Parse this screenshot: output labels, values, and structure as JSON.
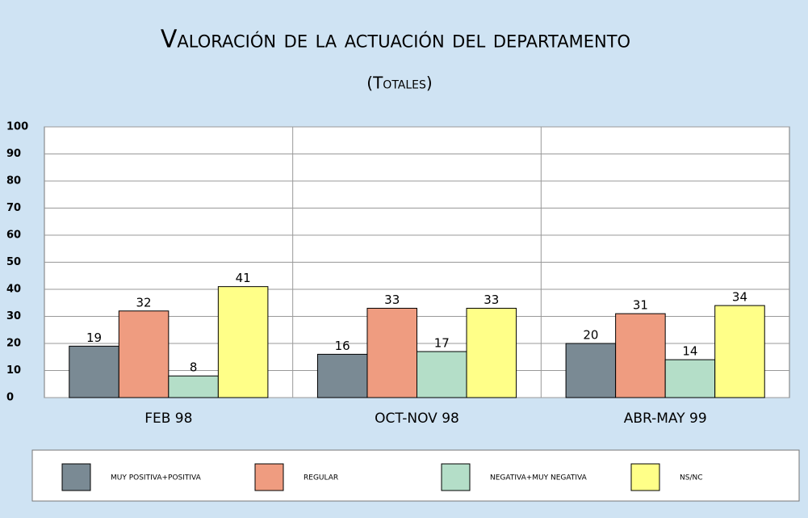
{
  "chart_data": {
    "type": "bar",
    "title": "Valoración de la actuación del departamento",
    "subtitle": "(Totales)",
    "categories": [
      "FEB 98",
      "OCT-NOV 98",
      "ABR-MAY 99"
    ],
    "series": [
      {
        "name": "MUY POSITIVA+POSITIVA",
        "color": "#7a8a94",
        "values": [
          19,
          16,
          20
        ]
      },
      {
        "name": "REGULAR",
        "color": "#ef9c80",
        "values": [
          32,
          33,
          31
        ]
      },
      {
        "name": "NEGATIVA+MUY NEGATIVA",
        "color": "#b4dec8",
        "values": [
          8,
          17,
          14
        ]
      },
      {
        "name": "NS/NC",
        "color": "#ffff88",
        "values": [
          41,
          33,
          34
        ]
      }
    ],
    "ylim": [
      0,
      100
    ],
    "yticks": [
      0,
      10,
      20,
      30,
      40,
      50,
      60,
      70,
      80,
      90,
      100
    ],
    "grid": true,
    "legend": "bottom"
  }
}
